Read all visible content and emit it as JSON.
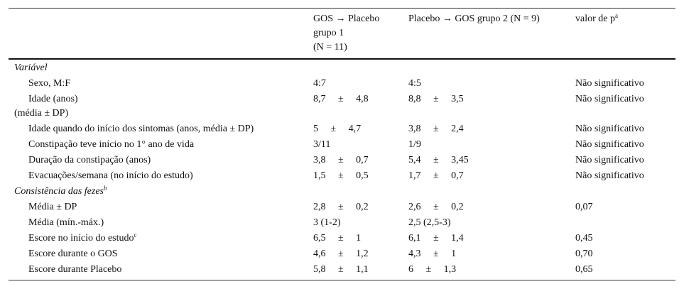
{
  "header": {
    "col1_line1": "GOS → Placebo",
    "col1_line2": "grupo 1",
    "col1_line3": "(N = 11)",
    "col2": "Placebo → GOS grupo 2 (N = 9)",
    "col3_text": "valor de p",
    "col3_sup": "a"
  },
  "section1": "Variável",
  "rows": [
    {
      "label": "Sexo, M:F",
      "g1": "4:7",
      "g2": "4:5",
      "p": "Não significativo"
    },
    {
      "label": "Idade (anos)",
      "label2": "(média ± DP)",
      "g1": "8,7     ±     4,8",
      "g2": "8,8     ±     3,5",
      "p": "Não significativo"
    },
    {
      "label": "Idade quando do início dos sintomas (anos, média ± DP)",
      "g1": "5     ±     4,7",
      "g2": "3,8     ±     2,4",
      "p": "Não significativo"
    },
    {
      "label": "Constipação teve início no 1° ano de vida",
      "g1": "3/11",
      "g2": "1/9",
      "p": "Não significativo"
    },
    {
      "label": "Duração da constipação (anos)",
      "g1": "3,8     ±     0,7",
      "g2": "5,4     ±     3,45",
      "p": "Não significativo"
    },
    {
      "label": "Evacuações/semana (no início do estudo)",
      "g1": "1,5     ±     0,5",
      "g2": "1,7     ±     0,7",
      "p": "Não significativo"
    }
  ],
  "section2_text": "Consistência das fezes",
  "section2_sup": "b",
  "rows2": [
    {
      "label": "Média ± DP",
      "g1": "2,8     ±     0,2",
      "g2": "2,6     ±     0,2",
      "p": "0,07"
    },
    {
      "label": "Média (mín.-máx.)",
      "g1": "3 (1-2)",
      "g2": "2,5 (2,5-3)",
      "p": ""
    },
    {
      "label": "Escore no início do estudo",
      "label_sup": "c",
      "g1": "6,5     ±     1",
      "g2": "6,1     ±     1,4",
      "p": "0,45"
    },
    {
      "label": "Escore durante o GOS",
      "g1": "4,6     ±     1,2",
      "g2": "4,3     ±     1",
      "p": "0,70"
    },
    {
      "label": "Escore durante Placebo",
      "g1": "5,8     ±     1,1",
      "g2": "6     ±     1,3",
      "p": "0,65"
    }
  ]
}
